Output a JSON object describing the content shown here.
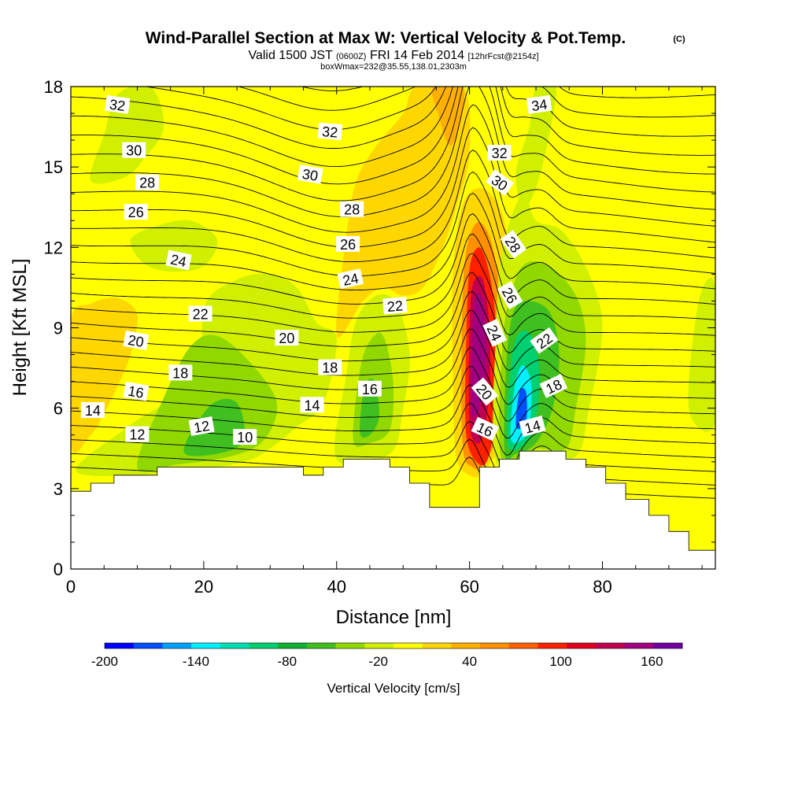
{
  "title": {
    "main": "Wind-Parallel Section at Max W: Vertical Velocity & Pot.Temp.",
    "tag": "(C)",
    "sub_valid": "Valid 1500 JST",
    "sub_z": "(0600Z)",
    "sub_date": "FRI 14 Feb 2014",
    "sub_fcst": "[12hrFcst@2154z]",
    "sub2": "boxWmax=232@35.55,138.01,2303m"
  },
  "chart_data": {
    "type": "heatmap",
    "xlabel": "Distance [nm]",
    "ylabel": "Height [Kft MSL]",
    "xlim": [
      0,
      97
    ],
    "ylim": [
      0,
      18
    ],
    "xticks": [
      0,
      20,
      40,
      60,
      80
    ],
    "yticks": [
      0,
      3,
      6,
      9,
      12,
      15,
      18
    ],
    "colorbar": {
      "label": "Vertical Velocity [cm/s]",
      "bounds": [
        -200,
        180
      ],
      "step": 20,
      "tick_labels": [
        "-200",
        "-140",
        "-80",
        "-20",
        "40",
        "100",
        "160"
      ],
      "colors": [
        "#0000ff",
        "#0050ff",
        "#00a0ff",
        "#00f0ff",
        "#00e0b0",
        "#00d070",
        "#10b030",
        "#40c020",
        "#90d800",
        "#d0f000",
        "#ffff00",
        "#ffd700",
        "#ffb000",
        "#ff9000",
        "#ff6000",
        "#ff2000",
        "#e00020",
        "#c00050",
        "#a00080",
        "#7000a0"
      ]
    },
    "terrain": [
      [
        0,
        2.9
      ],
      [
        3,
        2.9
      ],
      [
        3,
        3.2
      ],
      [
        6.5,
        3.2
      ],
      [
        6.5,
        3.5
      ],
      [
        13,
        3.5
      ],
      [
        13,
        3.8
      ],
      [
        35,
        3.8
      ],
      [
        35,
        3.5
      ],
      [
        38,
        3.5
      ],
      [
        38,
        3.8
      ],
      [
        41,
        3.8
      ],
      [
        41,
        4.1
      ],
      [
        48,
        4.1
      ],
      [
        48,
        3.8
      ],
      [
        51,
        3.8
      ],
      [
        51,
        3.2
      ],
      [
        54,
        3.2
      ],
      [
        54,
        2.3
      ],
      [
        61.5,
        2.3
      ],
      [
        61.5,
        3.8
      ],
      [
        64.5,
        3.8
      ],
      [
        64.5,
        4.1
      ],
      [
        67.5,
        4.1
      ],
      [
        67.5,
        4.4
      ],
      [
        74.5,
        4.4
      ],
      [
        74.5,
        4.1
      ],
      [
        77.5,
        4.1
      ],
      [
        77.5,
        3.8
      ],
      [
        80.5,
        3.8
      ],
      [
        80.5,
        3.2
      ],
      [
        83.5,
        3.2
      ],
      [
        83.5,
        2.6
      ],
      [
        87,
        2.6
      ],
      [
        87,
        2.0
      ],
      [
        90,
        2.0
      ],
      [
        90,
        1.4
      ],
      [
        93,
        1.4
      ],
      [
        93,
        0.7
      ],
      [
        97,
        0.7
      ]
    ],
    "w_regions": [
      {
        "w": 30,
        "poly": [
          [
            0,
            9.2
          ],
          [
            3,
            9.9
          ],
          [
            7,
            10.1
          ],
          [
            10,
            9.5
          ],
          [
            9,
            8
          ],
          [
            7,
            6.8
          ],
          [
            5,
            5.8
          ],
          [
            3,
            5
          ],
          [
            0,
            4.6
          ]
        ]
      },
      {
        "w": -10,
        "poly": [
          [
            1,
            3.6
          ],
          [
            8,
            5.2
          ],
          [
            13,
            6
          ],
          [
            17,
            6.4
          ],
          [
            20,
            6.3
          ],
          [
            20,
            9.7
          ],
          [
            25,
            10.8
          ],
          [
            30,
            11
          ],
          [
            34,
            10.5
          ],
          [
            37,
            9.2
          ],
          [
            40,
            8.6
          ],
          [
            38,
            6.2
          ],
          [
            34,
            5.3
          ],
          [
            30,
            4.5
          ],
          [
            26,
            4
          ],
          [
            16,
            3.6
          ]
        ]
      },
      {
        "w": -30,
        "poly": [
          [
            10,
            3.8
          ],
          [
            14,
            6.4
          ],
          [
            18,
            8.3
          ],
          [
            22,
            8.7
          ],
          [
            27,
            7.7
          ],
          [
            31,
            6.2
          ],
          [
            29,
            4.8
          ],
          [
            24,
            4.2
          ],
          [
            16,
            3.9
          ]
        ]
      },
      {
        "w": -50,
        "poly": [
          [
            17,
            4.4
          ],
          [
            21,
            6.1
          ],
          [
            25,
            6.2
          ],
          [
            26,
            4.8
          ],
          [
            22,
            4.3
          ]
        ]
      },
      {
        "w": -10,
        "poly": [
          [
            9,
            12.3
          ],
          [
            13,
            12.8
          ],
          [
            18,
            13
          ],
          [
            22,
            12.3
          ],
          [
            20,
            11.3
          ],
          [
            15,
            11.1
          ],
          [
            11,
            11.4
          ]
        ]
      },
      {
        "w": -10,
        "poly": [
          [
            3,
            14.5
          ],
          [
            5,
            16.2
          ],
          [
            7,
            17.7
          ],
          [
            12,
            18
          ],
          [
            14,
            16.5
          ],
          [
            11,
            15.3
          ],
          [
            8,
            14.6
          ]
        ]
      },
      {
        "w": -10,
        "poly": [
          [
            40,
            4.1
          ],
          [
            41.5,
            7.3
          ],
          [
            43,
            9.3
          ],
          [
            46,
            10.2
          ],
          [
            49,
            9.9
          ],
          [
            51,
            8
          ],
          [
            50,
            6
          ],
          [
            48,
            4.3
          ]
        ]
      },
      {
        "w": -30,
        "poly": [
          [
            42.5,
            4.8
          ],
          [
            43.5,
            7.4
          ],
          [
            45,
            8.5
          ],
          [
            47,
            8.7
          ],
          [
            48.5,
            7
          ],
          [
            48,
            5.2
          ],
          [
            45,
            4.7
          ]
        ]
      },
      {
        "w": -50,
        "poly": [
          [
            43.5,
            5.1
          ],
          [
            44.2,
            6.8
          ],
          [
            45.7,
            7
          ],
          [
            46.4,
            5.7
          ],
          [
            45,
            5
          ]
        ]
      },
      {
        "w": 30,
        "poly": [
          [
            40,
            8.7
          ],
          [
            41.5,
            12.5
          ],
          [
            43,
            14.5
          ],
          [
            46,
            15.8
          ],
          [
            50,
            17
          ],
          [
            52,
            18
          ],
          [
            59,
            18
          ],
          [
            60,
            15.5
          ],
          [
            58,
            13.5
          ],
          [
            56,
            12
          ],
          [
            53,
            10.5
          ],
          [
            50,
            10.2
          ],
          [
            47,
            10.5
          ],
          [
            44,
            10
          ]
        ]
      },
      {
        "w": 50,
        "poly": [
          [
            54.5,
            18
          ],
          [
            59,
            18
          ],
          [
            58.5,
            16.5
          ],
          [
            57,
            15.8
          ],
          [
            55.5,
            16.8
          ]
        ]
      },
      {
        "w": 30,
        "poly": [
          [
            58,
            4.2
          ],
          [
            57.5,
            7
          ],
          [
            57.5,
            11
          ],
          [
            59,
            13.6
          ],
          [
            62,
            14.2
          ],
          [
            65,
            13.2
          ],
          [
            66,
            11
          ],
          [
            66,
            8
          ],
          [
            65,
            5
          ],
          [
            62,
            3.6
          ],
          [
            60,
            3.5
          ]
        ]
      },
      {
        "w": 60,
        "poly": [
          [
            59,
            4.5
          ],
          [
            58.8,
            8
          ],
          [
            59.3,
            11.5
          ],
          [
            61,
            12.9
          ],
          [
            63,
            12.4
          ],
          [
            64.5,
            10.5
          ],
          [
            65,
            8
          ],
          [
            64,
            5
          ],
          [
            62,
            3.9
          ],
          [
            60.5,
            3.8
          ]
        ]
      },
      {
        "w": 100,
        "poly": [
          [
            59.5,
            5
          ],
          [
            59.5,
            8.5
          ],
          [
            60,
            11.2
          ],
          [
            61.5,
            12
          ],
          [
            63,
            11
          ],
          [
            64,
            9
          ],
          [
            64,
            6.3
          ],
          [
            63,
            4.3
          ],
          [
            61.5,
            3.9
          ]
        ]
      },
      {
        "w": 140,
        "poly": [
          [
            60,
            5.5
          ],
          [
            60,
            9
          ],
          [
            60.5,
            10.6
          ],
          [
            62,
            10.8
          ],
          [
            63,
            9
          ],
          [
            63,
            6.6
          ],
          [
            62,
            5
          ],
          [
            61,
            4.7
          ]
        ]
      },
      {
        "w": 160,
        "poly": [
          [
            60.3,
            6
          ],
          [
            60.5,
            9
          ],
          [
            61,
            10.2
          ],
          [
            62,
            10
          ],
          [
            62.5,
            8.5
          ],
          [
            62.3,
            7
          ],
          [
            61.5,
            6
          ],
          [
            60.8,
            5.7
          ]
        ]
      },
      {
        "w": 170,
        "poly": [
          [
            60.7,
            7.5
          ],
          [
            61,
            9.5
          ],
          [
            61.7,
            9.4
          ],
          [
            62,
            8.3
          ],
          [
            61.5,
            7.5
          ]
        ]
      },
      {
        "w": -10,
        "poly": [
          [
            67,
            14.8
          ],
          [
            69,
            16.5
          ],
          [
            70,
            18
          ],
          [
            73,
            18
          ],
          [
            72,
            16.2
          ],
          [
            70,
            14.2
          ],
          [
            68,
            13.5
          ]
        ]
      },
      {
        "w": -10,
        "poly": [
          [
            64,
            4
          ],
          [
            64,
            9
          ],
          [
            65,
            12
          ],
          [
            68,
            14
          ],
          [
            70,
            13
          ],
          [
            74,
            12.6
          ],
          [
            78,
            11
          ],
          [
            80,
            9
          ],
          [
            78,
            6
          ],
          [
            76,
            4.2
          ],
          [
            70,
            4.3
          ]
        ]
      },
      {
        "w": -30,
        "poly": [
          [
            64.8,
            4.1
          ],
          [
            65,
            8.5
          ],
          [
            66.5,
            10.5
          ],
          [
            68.5,
            11.4
          ],
          [
            72,
            11.3
          ],
          [
            76,
            10.2
          ],
          [
            77.5,
            8.5
          ],
          [
            76,
            6
          ],
          [
            74.5,
            4.5
          ],
          [
            70,
            4.5
          ]
        ]
      },
      {
        "w": -60,
        "poly": [
          [
            65.3,
            4.3
          ],
          [
            65.5,
            7.5
          ],
          [
            66.5,
            9.5
          ],
          [
            68.5,
            10
          ],
          [
            72,
            9.6
          ],
          [
            73.5,
            8
          ],
          [
            72.5,
            6
          ],
          [
            70,
            4.7
          ],
          [
            67,
            4.3
          ]
        ]
      },
      {
        "w": -100,
        "poly": [
          [
            65.8,
            4.6
          ],
          [
            66,
            7
          ],
          [
            67,
            8.6
          ],
          [
            69,
            8.8
          ],
          [
            70.5,
            7.5
          ],
          [
            70,
            5.6
          ],
          [
            68.5,
            4.7
          ]
        ]
      },
      {
        "w": -140,
        "poly": [
          [
            66.2,
            4.9
          ],
          [
            66.8,
            6.8
          ],
          [
            68,
            7.6
          ],
          [
            69.3,
            6.9
          ],
          [
            69,
            5.4
          ],
          [
            67.8,
            4.8
          ]
        ]
      },
      {
        "w": -170,
        "poly": [
          [
            67,
            5.3
          ],
          [
            67.5,
            6.6
          ],
          [
            68.5,
            6.6
          ],
          [
            68.5,
            5.5
          ]
        ]
      },
      {
        "w": -10,
        "poly": [
          [
            93,
            6
          ],
          [
            94.5,
            10
          ],
          [
            97,
            10.5
          ],
          [
            97,
            5.5
          ]
        ]
      }
    ],
    "theta_values": [
      8,
      9,
      10,
      11,
      12,
      13,
      14,
      15,
      16,
      17,
      18,
      19,
      20,
      21,
      22,
      23,
      24,
      25,
      26,
      27,
      28,
      29,
      30,
      31,
      32,
      33,
      34,
      35
    ],
    "theta_labels": [
      {
        "text": "32",
        "x": 7,
        "y": 17.3,
        "rot": 8
      },
      {
        "text": "30",
        "x": 9.5,
        "y": 15.6,
        "rot": 0
      },
      {
        "text": "28",
        "x": 11.5,
        "y": 14.4,
        "rot": 0
      },
      {
        "text": "26",
        "x": 9.8,
        "y": 13.3,
        "rot": 0
      },
      {
        "text": "24",
        "x": 16.2,
        "y": 11.5,
        "rot": 12
      },
      {
        "text": "22",
        "x": 19.5,
        "y": 9.5,
        "rot": 0
      },
      {
        "text": "20",
        "x": 9.8,
        "y": 8.5,
        "rot": 10
      },
      {
        "text": "18",
        "x": 16.5,
        "y": 7.3,
        "rot": 0
      },
      {
        "text": "16",
        "x": 9.8,
        "y": 6.6,
        "rot": 10
      },
      {
        "text": "14",
        "x": 3.3,
        "y": 5.9,
        "rot": 0
      },
      {
        "text": "12",
        "x": 10,
        "y": 5,
        "rot": 0
      },
      {
        "text": "12",
        "x": 19.7,
        "y": 5.3,
        "rot": -10
      },
      {
        "text": "10",
        "x": 26.2,
        "y": 4.9,
        "rot": 0
      },
      {
        "text": "20",
        "x": 32.5,
        "y": 8.6,
        "rot": 0
      },
      {
        "text": "18",
        "x": 39,
        "y": 7.5,
        "rot": 0
      },
      {
        "text": "14",
        "x": 36.3,
        "y": 6.1,
        "rot": 0
      },
      {
        "text": "16",
        "x": 45,
        "y": 6.7,
        "rot": 0
      },
      {
        "text": "32",
        "x": 39,
        "y": 16.3,
        "rot": 5
      },
      {
        "text": "30",
        "x": 36,
        "y": 14.7,
        "rot": 10
      },
      {
        "text": "28",
        "x": 42.3,
        "y": 13.4,
        "rot": 0
      },
      {
        "text": "26",
        "x": 41.7,
        "y": 12.1,
        "rot": 0
      },
      {
        "text": "24",
        "x": 42.1,
        "y": 10.8,
        "rot": -12
      },
      {
        "text": "22",
        "x": 48.8,
        "y": 9.8,
        "rot": -5
      },
      {
        "text": "34",
        "x": 70.5,
        "y": 17.3,
        "rot": -8
      },
      {
        "text": "32",
        "x": 64.5,
        "y": 15.5,
        "rot": 0
      },
      {
        "text": "30",
        "x": 64.5,
        "y": 14.4,
        "rot": 35
      },
      {
        "text": "28",
        "x": 66.5,
        "y": 12.1,
        "rot": 55
      },
      {
        "text": "26",
        "x": 66,
        "y": 10.2,
        "rot": 60
      },
      {
        "text": "24",
        "x": 63.7,
        "y": 8.8,
        "rot": 65
      },
      {
        "text": "20",
        "x": 62.2,
        "y": 6.6,
        "rot": 50
      },
      {
        "text": "16",
        "x": 62.3,
        "y": 5.2,
        "rot": 25
      },
      {
        "text": "22",
        "x": 71.3,
        "y": 8.5,
        "rot": -35
      },
      {
        "text": "18",
        "x": 72.7,
        "y": 6.8,
        "rot": -25
      },
      {
        "text": "14",
        "x": 69.5,
        "y": 5.3,
        "rot": -15
      }
    ]
  }
}
